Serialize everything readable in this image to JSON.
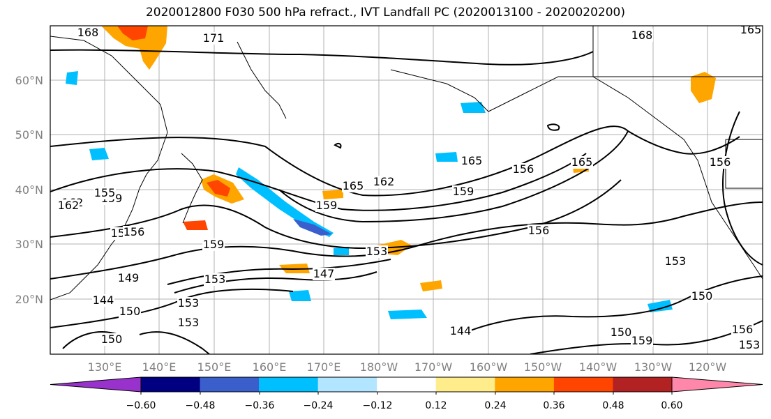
{
  "title": "2020012800 F030 500 hPa refract., IVT Landfall PC (2020013100 - 2020020200)",
  "lat_labels": [
    "60°N",
    "50°N",
    "40°N",
    "30°N",
    "20°N"
  ],
  "lon_labels": [
    "130°E",
    "140°E",
    "150°E",
    "160°E",
    "170°E",
    "180°W",
    "170°W",
    "160°W",
    "150°W",
    "140°W",
    "130°W",
    "120°W"
  ],
  "contour_labels": [
    "168",
    "171",
    "168",
    "165",
    "162",
    "159",
    "156",
    "165",
    "165",
    "162",
    "156",
    "159",
    "165",
    "159",
    "156",
    "159",
    "153",
    "156",
    "153",
    "147",
    "153",
    "150",
    "144",
    "153",
    "144",
    "150",
    "159",
    "150",
    "153",
    "156",
    "153",
    "150",
    "155",
    "162",
    "156",
    "149"
  ],
  "colorbar": {
    "ticks": [
      "−0.60",
      "−0.48",
      "−0.36",
      "−0.24",
      "−0.12",
      "0.12",
      "0.24",
      "0.36",
      "0.48",
      "0.60"
    ],
    "colors": [
      "#9932cc",
      "#000080",
      "#3a5fcd",
      "#00bfff",
      "#b2e5ff",
      "#ffffff",
      "#ffec8b",
      "#ffa500",
      "#ff4500",
      "#b22222",
      "#ff88aa"
    ]
  }
}
